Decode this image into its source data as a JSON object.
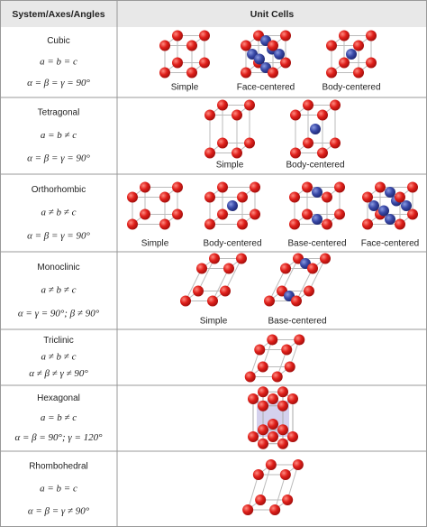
{
  "header": {
    "col1": "System/Axes/Angles",
    "col2": "Unit Cells"
  },
  "rows": [
    {
      "system": "Cubic",
      "axes": "a = b = c",
      "angles": "α = β = γ = 90°",
      "cells": [
        "Simple",
        "Face-centered",
        "Body-centered"
      ]
    },
    {
      "system": "Tetragonal",
      "axes": "a = b ≠ c",
      "angles": "α = β = γ = 90°",
      "cells": [
        "Simple",
        "Body-centered"
      ]
    },
    {
      "system": "Orthorhombic",
      "axes": "a ≠ b ≠ c",
      "angles": "α = β = γ = 90°",
      "cells": [
        "Simple",
        "Body-centered",
        "Base-centered",
        "Face-centered"
      ]
    },
    {
      "system": "Monoclinic",
      "axes": "a ≠ b ≠ c",
      "angles": "α = γ = 90°; β ≠ 90°",
      "cells": [
        "Simple",
        "Base-centered"
      ]
    },
    {
      "system": "Triclinic",
      "axes": "a ≠ b ≠ c",
      "angles": "α ≠ β ≠ γ ≠ 90°",
      "cells": []
    },
    {
      "system": "Hexagonal",
      "axes": "a = b ≠ c",
      "angles": "α = β = 90°; γ = 120°",
      "cells": []
    },
    {
      "system": "Rhombohedral",
      "axes": "a = b = c",
      "angles": "α = β = γ ≠ 90°",
      "cells": []
    }
  ]
}
